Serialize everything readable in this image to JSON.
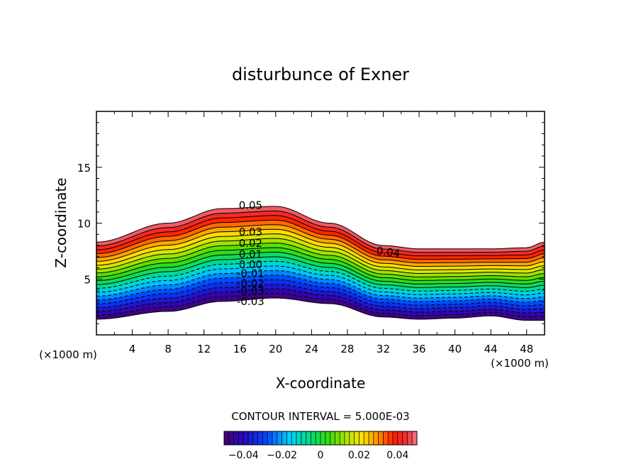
{
  "chart_data": {
    "type": "contour",
    "title": "disturbunce of Exner",
    "xlabel": "X-coordinate",
    "ylabel": "Z-coordinate",
    "x_unit_left": "(×1000 m)",
    "x_unit_right": "(×1000 m)",
    "xlim": [
      0,
      50
    ],
    "ylim": [
      0,
      20
    ],
    "x_ticks": [
      4,
      8,
      12,
      16,
      20,
      24,
      28,
      32,
      36,
      40,
      44,
      48
    ],
    "x_tick_labels": [
      "4",
      "8",
      "12",
      "16",
      "20",
      "24",
      "28",
      "32",
      "36",
      "40",
      "44",
      "48"
    ],
    "y_ticks": [
      5,
      10,
      15
    ],
    "y_tick_labels": [
      "5",
      "10",
      "15"
    ],
    "contour_levels": [
      -0.04,
      -0.035,
      -0.03,
      -0.025,
      -0.02,
      -0.015,
      -0.01,
      -0.005,
      0.0,
      0.005,
      0.01,
      0.015,
      0.02,
      0.025,
      0.03,
      0.035,
      0.04,
      0.045,
      0.05
    ],
    "contour_labels": [
      {
        "text": "0.05",
        "x": 17.2,
        "z": 11.6
      },
      {
        "text": "0.04",
        "x": 32.5,
        "z": 7.4
      },
      {
        "text": "0.03",
        "x": 17.2,
        "z": 9.2
      },
      {
        "text": "0.02",
        "x": 17.2,
        "z": 8.2
      },
      {
        "text": "0.01",
        "x": 17.2,
        "z": 7.2
      },
      {
        "text": "0.00",
        "x": 17.2,
        "z": 6.3
      },
      {
        "text": "-0.01",
        "x": 17.2,
        "z": 5.5
      },
      {
        "text": "-0.02",
        "x": 17.2,
        "z": 4.6
      },
      {
        "text": "-0.03",
        "x": 17.2,
        "z": 3.9
      },
      {
        "text": "-0.03",
        "x": 17.2,
        "z": 3.0
      }
    ],
    "field_bounds": {
      "bottom_control_points": [
        [
          0,
          1.4
        ],
        [
          8,
          2.1
        ],
        [
          14,
          3.0
        ],
        [
          20,
          3.3
        ],
        [
          26,
          2.8
        ],
        [
          32,
          1.6
        ],
        [
          36,
          1.4
        ],
        [
          40,
          1.5
        ],
        [
          44,
          1.7
        ],
        [
          48,
          1.3
        ],
        [
          50,
          1.3
        ]
      ],
      "top_control_points": [
        [
          0,
          8.3
        ],
        [
          8,
          10.0
        ],
        [
          14,
          11.3
        ],
        [
          20,
          11.5
        ],
        [
          26,
          10.0
        ],
        [
          32,
          8.0
        ],
        [
          36,
          7.7
        ],
        [
          40,
          7.7
        ],
        [
          44,
          7.7
        ],
        [
          48,
          7.8
        ],
        [
          50,
          8.3
        ]
      ]
    },
    "contour_interval_text": "CONTOUR INTERVAL = 5.000E-03",
    "colorbar": {
      "range": [
        -0.05,
        0.05
      ],
      "tick_values": [
        -0.04,
        -0.02,
        0,
        0.02,
        0.04
      ],
      "tick_labels": [
        "−0.04",
        "−0.02",
        "0",
        "0.02",
        "0.04"
      ]
    }
  }
}
